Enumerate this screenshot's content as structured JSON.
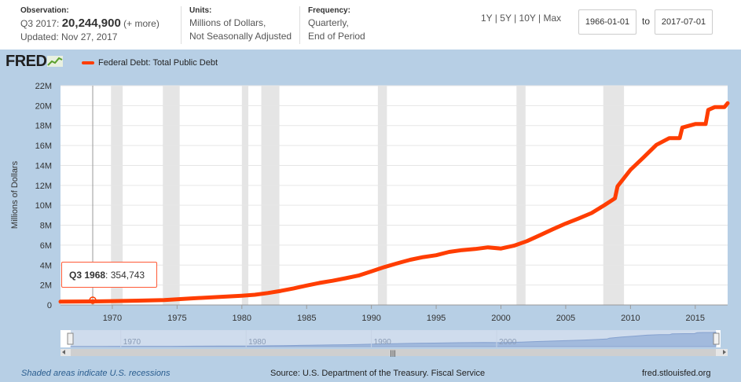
{
  "header": {
    "observation_label": "Observation:",
    "observation_period": "Q3 2017:",
    "observation_value": "20,244,900",
    "observation_more": "(+ more)",
    "updated": "Updated: Nov 27, 2017",
    "units_label": "Units:",
    "units_line1": "Millions of Dollars,",
    "units_line2": "Not Seasonally Adjusted",
    "frequency_label": "Frequency:",
    "frequency_line1": "Quarterly,",
    "frequency_line2": "End of Period",
    "range_1y": "1Y",
    "range_5y": "5Y",
    "range_10y": "10Y",
    "range_max": "Max",
    "date_from": "1966-01-01",
    "date_to_label": "to",
    "date_to": "2017-07-01"
  },
  "logo": {
    "text": "FRED"
  },
  "tooltip": {
    "period": "Q3 1968",
    "value": ": 354,743"
  },
  "navigator": {
    "labels": [
      "1970",
      "1980",
      "1990",
      "2000"
    ]
  },
  "footer": {
    "recession_note": "Shaded areas indicate U.S. recessions",
    "source": "Source: U.S. Department of the Treasury. Fiscal Service",
    "site": "fred.stlouisfed.org"
  },
  "colors": {
    "series": "#ff3d00",
    "background": "#b7cfe5",
    "recession": "#e5e5e5"
  },
  "chart_data": {
    "type": "line",
    "title": "Federal Debt: Total Public Debt",
    "xlabel": "",
    "ylabel": "Millions of Dollars",
    "xlim": [
      1966.0,
      2017.5
    ],
    "ylim": [
      0,
      22000000
    ],
    "yticks": [
      0,
      2000000,
      4000000,
      6000000,
      8000000,
      10000000,
      12000000,
      14000000,
      16000000,
      18000000,
      20000000,
      22000000
    ],
    "ytick_labels": [
      "0",
      "2M",
      "4M",
      "6M",
      "8M",
      "10M",
      "12M",
      "14M",
      "16M",
      "18M",
      "20M",
      "22M"
    ],
    "xticks": [
      1970,
      1975,
      1980,
      1985,
      1990,
      1995,
      2000,
      2005,
      2010,
      2015
    ],
    "recessions": [
      [
        1969.9,
        1970.8
      ],
      [
        1973.9,
        1975.2
      ],
      [
        1980.0,
        1980.5
      ],
      [
        1981.5,
        1982.9
      ],
      [
        1990.5,
        1991.2
      ],
      [
        2001.2,
        2001.9
      ],
      [
        2007.9,
        2009.5
      ]
    ],
    "series": [
      {
        "name": "Federal Debt: Total Public Debt",
        "x": [
          1966.0,
          1968.5,
          1970,
          1972,
          1974,
          1975,
          1976,
          1978,
          1980,
          1981,
          1982,
          1983,
          1984,
          1985,
          1986,
          1987,
          1988,
          1989,
          1990,
          1991,
          1992,
          1993,
          1994,
          1995,
          1996,
          1997,
          1998,
          1999,
          2000,
          2001,
          2002,
          2003,
          2004,
          2005,
          2006,
          2007,
          2008,
          2008.8,
          2009,
          2010,
          2011,
          2012,
          2013,
          2013.8,
          2014,
          2015,
          2015.8,
          2016,
          2016.5,
          2017,
          2017.25,
          2017.5
        ],
        "values": [
          329000,
          354743,
          389000,
          437000,
          486000,
          576000,
          653000,
          789000,
          930000,
          1028000,
          1197000,
          1410000,
          1663000,
          1945000,
          2214000,
          2431000,
          2684000,
          2953000,
          3364000,
          3802000,
          4177000,
          4535000,
          4800000,
          4989000,
          5323000,
          5502000,
          5614000,
          5776000,
          5662000,
          5943000,
          6405000,
          6998000,
          7596000,
          8170000,
          8680000,
          9229000,
          10025000,
          10700000,
          11910000,
          13562000,
          14790000,
          16066000,
          16738000,
          16738000,
          17794000,
          18150000,
          18150000,
          19573000,
          19850000,
          19846000,
          19846000,
          20244900
        ]
      }
    ]
  }
}
